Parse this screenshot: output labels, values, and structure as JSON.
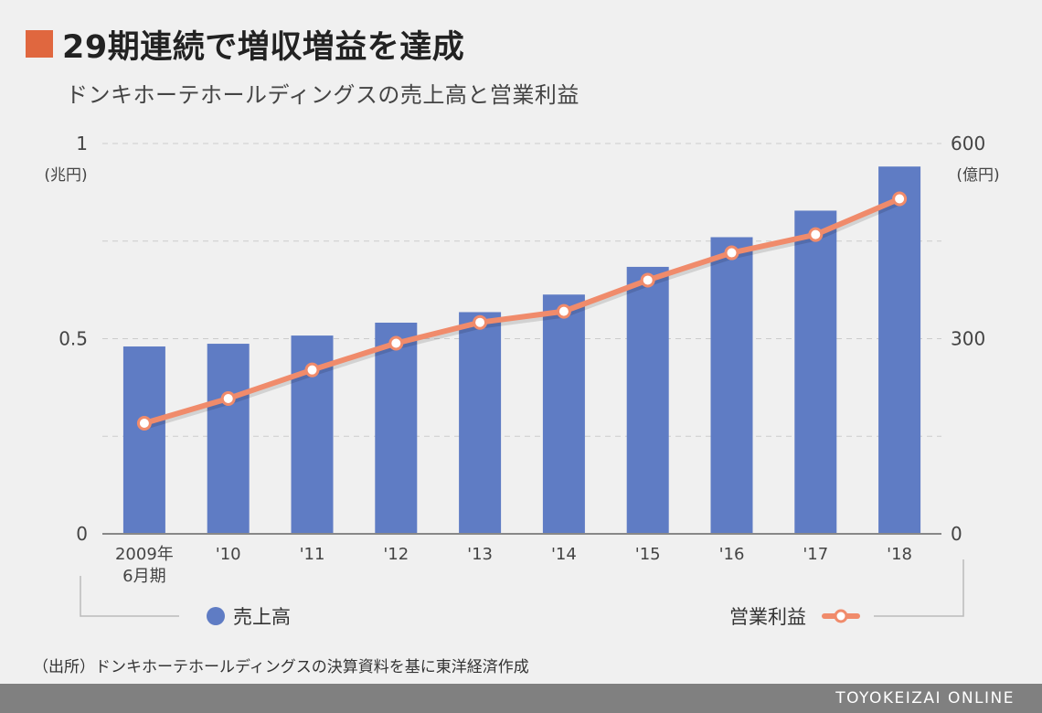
{
  "header": {
    "title": "29期連続で増収増益を達成",
    "subtitle": "ドンキホーテホールディングスの売上高と営業利益"
  },
  "colors": {
    "title_square": "#e0673f",
    "bar": "#5f7cc4",
    "line": "#f08b6b",
    "grid": "#cccccc",
    "axis": "#888888"
  },
  "chart_data": {
    "type": "bar",
    "categories": [
      "2009年\n6月期",
      "'10",
      "'11",
      "'12",
      "'13",
      "'14",
      "'15",
      "'16",
      "'17",
      "'18"
    ],
    "series": [
      {
        "name": "売上高",
        "type": "bar",
        "axis": "left",
        "values": [
          0.48,
          0.487,
          0.508,
          0.541,
          0.568,
          0.613,
          0.684,
          0.76,
          0.828,
          0.941
        ]
      },
      {
        "name": "営業利益",
        "type": "line",
        "axis": "right",
        "values": [
          170,
          208,
          252,
          293,
          325,
          342,
          390,
          432,
          460,
          515
        ]
      }
    ],
    "y_left": {
      "unit": "(兆円)",
      "ylim": [
        0,
        1
      ],
      "ticks": [
        "0",
        "0.5",
        "1"
      ]
    },
    "y_right": {
      "unit": "(億円)",
      "ylim": [
        0,
        600
      ],
      "ticks": [
        "0",
        "300",
        "600"
      ]
    },
    "grid": true,
    "legend": {
      "position": "bottom"
    }
  },
  "footer": {
    "source": "（出所）ドンキホーテホールディングスの決算資料を基に東洋経済作成",
    "brand": "TOYOKEIZAI ONLINE"
  }
}
